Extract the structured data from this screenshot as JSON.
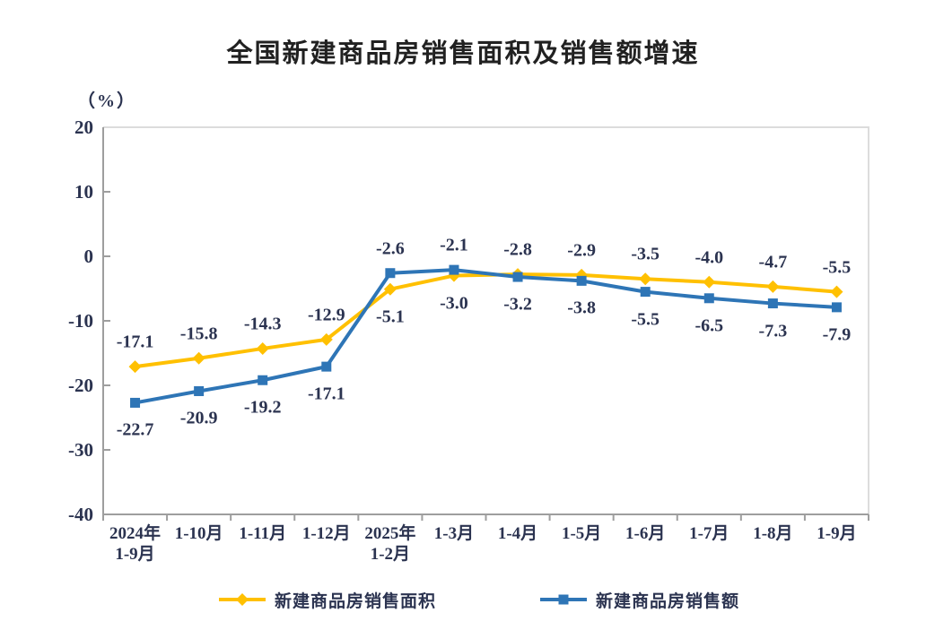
{
  "title": "全国新建商品房销售面积及销售额增速",
  "y_axis_unit": "（%）",
  "colors": {
    "series_area": "#FFC000",
    "series_amount": "#2E75B6",
    "axis_line": "#9E9E9E",
    "plot_border": "#DCDCDC",
    "text": "#2B3350",
    "title_text": "#212121"
  },
  "chart_data": {
    "type": "line",
    "title": "全国新建商品房销售面积及销售额增速",
    "ylabel": "（%）",
    "xlabel": "",
    "grid": false,
    "legend_position": "bottom",
    "ylim": [
      -40,
      20
    ],
    "yticks": [
      20,
      10,
      0,
      -10,
      -20,
      -30,
      -40
    ],
    "categories": [
      "2024年\n1-9月",
      "1-10月",
      "1-11月",
      "1-12月",
      "2025年\n1-2月",
      "1-3月",
      "1-4月",
      "1-5月",
      "1-6月",
      "1-7月",
      "1-8月",
      "1-9月"
    ],
    "series": [
      {
        "name": "新建商品房销售面积",
        "color": "#FFC000",
        "marker": "diamond",
        "values": [
          -17.1,
          -15.8,
          -14.3,
          -12.9,
          -5.1,
          -3.0,
          -2.8,
          -2.9,
          -3.5,
          -4.0,
          -4.7,
          -5.5
        ],
        "label_side": [
          "above",
          "above",
          "above",
          "above",
          "below",
          "below",
          "above",
          "above",
          "above",
          "above",
          "above",
          "above"
        ]
      },
      {
        "name": "新建商品房销售额",
        "color": "#2E75B6",
        "marker": "square",
        "values": [
          -22.7,
          -20.9,
          -19.2,
          -17.1,
          -2.6,
          -2.1,
          -3.2,
          -3.8,
          -5.5,
          -6.5,
          -7.3,
          -7.9
        ],
        "label_side": [
          "below",
          "below",
          "below",
          "below",
          "above",
          "above",
          "below",
          "below",
          "below",
          "below",
          "below",
          "below"
        ]
      }
    ]
  }
}
